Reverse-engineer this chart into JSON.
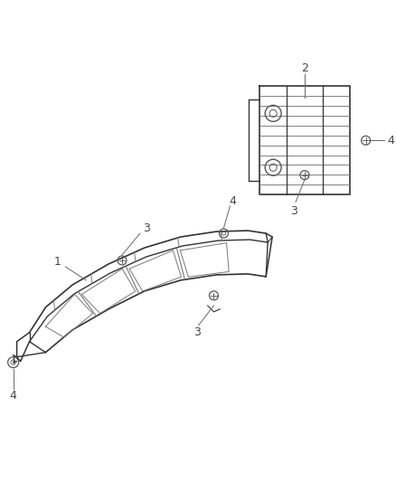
{
  "bg_color": "#ffffff",
  "line_color": "#555555",
  "dark_line": "#333333",
  "gray_line": "#777777",
  "label_color": "#444444",
  "fig_width": 4.38,
  "fig_height": 5.33,
  "dpi": 100
}
